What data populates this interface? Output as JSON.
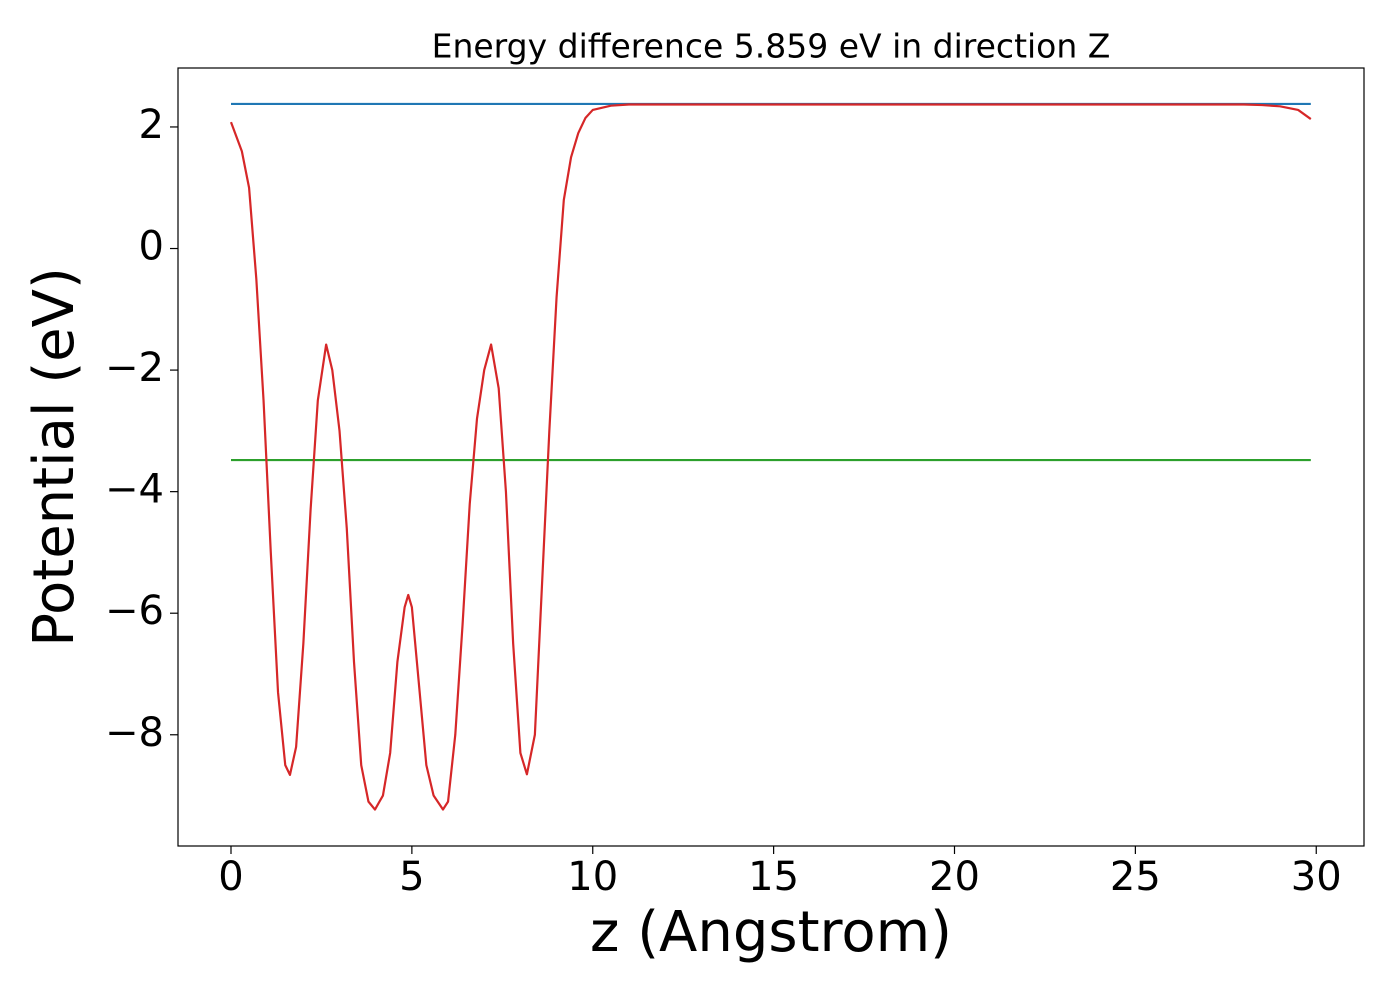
{
  "chart_data": {
    "type": "line",
    "title": "Energy difference 5.859 eV in direction Z",
    "xlabel": "z (Angstrom)",
    "ylabel": "Potential (eV)",
    "xlim": [
      -1.465,
      31.32
    ],
    "ylim": [
      -9.83,
      2.97
    ],
    "xticks": [
      0,
      5,
      10,
      15,
      20,
      25,
      30
    ],
    "yticks": [
      {
        "value": -8,
        "label": "−8"
      },
      {
        "value": -6,
        "label": "−6"
      },
      {
        "value": -4,
        "label": "−4"
      },
      {
        "value": -2,
        "label": "−2"
      },
      0,
      2
    ],
    "grid": false,
    "series": [
      {
        "color": "#1f77b4",
        "x": [
          0,
          29.85
        ],
        "values": [
          2.379,
          2.379
        ]
      },
      {
        "color": "#2ca02c",
        "x": [
          0,
          29.85
        ],
        "values": [
          -3.48,
          -3.48
        ]
      },
      {
        "color": "#d62728",
        "x": [
          0,
          0.3,
          0.5,
          0.7,
          0.9,
          1.1,
          1.3,
          1.5,
          1.63,
          1.8,
          2.0,
          2.2,
          2.4,
          2.63,
          2.8,
          3.0,
          3.2,
          3.4,
          3.6,
          3.8,
          3.98,
          4.2,
          4.4,
          4.6,
          4.8,
          4.9,
          5.0,
          5.2,
          5.4,
          5.6,
          5.86,
          6.0,
          6.2,
          6.4,
          6.6,
          6.8,
          7.0,
          7.19,
          7.4,
          7.6,
          7.8,
          8.0,
          8.18,
          8.4,
          8.6,
          8.8,
          9.0,
          9.2,
          9.4,
          9.6,
          9.8,
          10.0,
          10.5,
          11,
          15,
          20,
          25,
          28,
          28.5,
          29,
          29.5,
          29.85
        ],
        "values": [
          2.08,
          1.6,
          1.0,
          -0.5,
          -2.5,
          -5.0,
          -7.3,
          -8.5,
          -8.66,
          -8.2,
          -6.5,
          -4.3,
          -2.5,
          -1.58,
          -2.0,
          -3.0,
          -4.6,
          -6.8,
          -8.5,
          -9.1,
          -9.23,
          -9.0,
          -8.3,
          -6.8,
          -5.9,
          -5.7,
          -5.9,
          -7.2,
          -8.5,
          -9.0,
          -9.23,
          -9.1,
          -8.0,
          -6.2,
          -4.2,
          -2.8,
          -2.0,
          -1.58,
          -2.3,
          -4.0,
          -6.5,
          -8.3,
          -8.65,
          -8.0,
          -5.5,
          -3.0,
          -0.8,
          0.8,
          1.5,
          1.9,
          2.15,
          2.28,
          2.35,
          2.37,
          2.37,
          2.37,
          2.37,
          2.37,
          2.36,
          2.34,
          2.28,
          2.13
        ]
      }
    ]
  }
}
